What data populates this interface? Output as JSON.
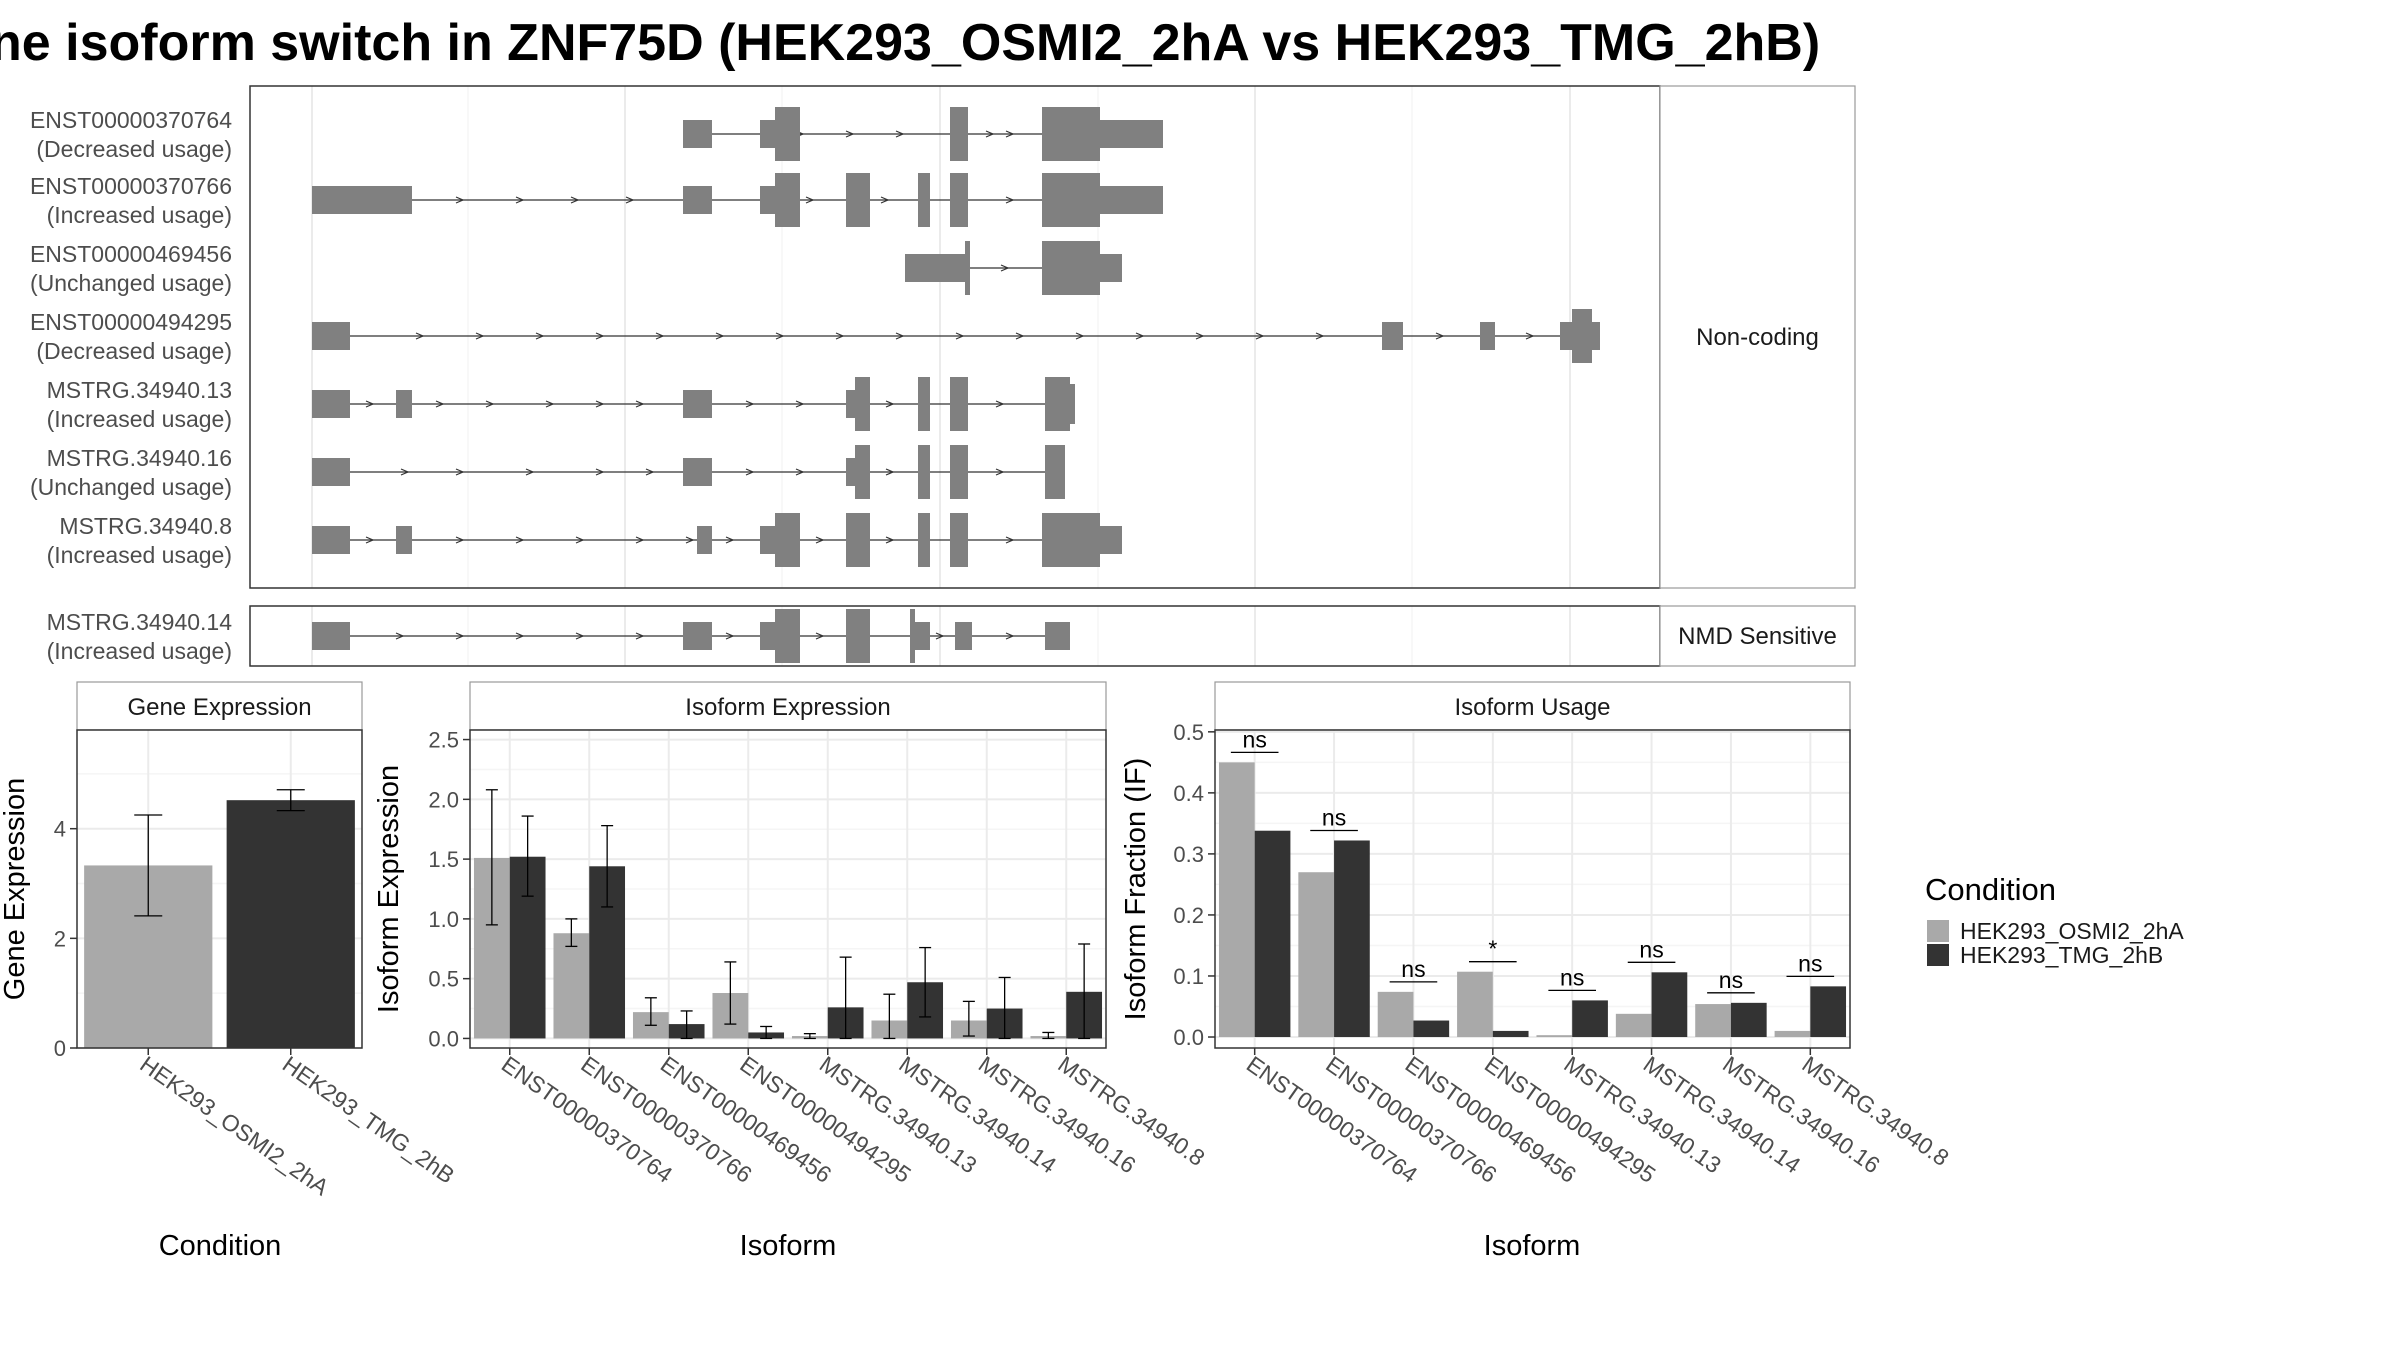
{
  "title": "ne isoform switch in ZNF75D (HEK293_OSMI2_2hA vs HEK293_TMG_2hB)",
  "colors": {
    "cond_a": "#a9a9a9",
    "cond_b": "#333333",
    "exon": "#808080",
    "grid": "#ebebeb",
    "panel_border": "#333333",
    "strip_fill": "#ffffff"
  },
  "structure": {
    "groups": [
      {
        "label": "Non-coding",
        "isoforms": [
          {
            "id": "ENST00000370764",
            "usage": "(Decreased usage)"
          },
          {
            "id": "ENST00000370766",
            "usage": "(Increased usage)"
          },
          {
            "id": "ENST00000469456",
            "usage": "(Unchanged usage)"
          },
          {
            "id": "ENST00000494295",
            "usage": "(Decreased usage)"
          },
          {
            "id": "MSTRG.34940.13",
            "usage": "(Increased usage)"
          },
          {
            "id": "MSTRG.34940.16",
            "usage": "(Unchanged usage)"
          },
          {
            "id": "MSTRG.34940.8",
            "usage": "(Increased usage)"
          }
        ]
      },
      {
        "label": "NMD Sensitive",
        "isoforms": [
          {
            "id": "MSTRG.34940.14",
            "usage": "(Increased usage)"
          }
        ]
      }
    ]
  },
  "legend": {
    "title": "Condition",
    "items": [
      "HEK293_OSMI2_2hA",
      "HEK293_TMG_2hB"
    ]
  },
  "chart_data": [
    {
      "type": "bar",
      "strip": "Gene Expression",
      "xlabel": "Condition",
      "ylabel": "Gene Expression",
      "ylim": [
        0,
        5.8
      ],
      "yticks": [
        0,
        2,
        4
      ],
      "categories": [
        "HEK293_OSMI2_2hA",
        "HEK293_TMG_2hB"
      ],
      "series": [
        {
          "values": [
            3.33,
            4.52
          ],
          "err_low": [
            2.41,
            4.33
          ],
          "err_high": [
            4.25,
            4.71
          ]
        }
      ]
    },
    {
      "type": "bar",
      "strip": "Isoform Expression",
      "xlabel": "Isoform",
      "ylabel": "Isoform Expression",
      "ylim": [
        -0.08,
        2.58
      ],
      "yticks": [
        0.0,
        0.5,
        1.0,
        1.5,
        2.0,
        2.5
      ],
      "categories": [
        "ENST00000370764",
        "ENST00000370766",
        "ENST00000469456",
        "ENST00000494295",
        "MSTRG.34940.13",
        "MSTRG.34940.14",
        "MSTRG.34940.16",
        "MSTRG.34940.8"
      ],
      "series": [
        {
          "name": "HEK293_OSMI2_2hA",
          "values": [
            1.51,
            0.88,
            0.22,
            0.38,
            0.02,
            0.15,
            0.15,
            0.02
          ],
          "err_low": [
            0.95,
            0.77,
            0.11,
            0.12,
            0.0,
            0.0,
            0.02,
            0.0
          ],
          "err_high": [
            2.08,
            1.0,
            0.34,
            0.64,
            0.04,
            0.37,
            0.31,
            0.05
          ]
        },
        {
          "name": "HEK293_TMG_2hB",
          "values": [
            1.52,
            1.44,
            0.12,
            0.05,
            0.26,
            0.47,
            0.25,
            0.39
          ],
          "err_low": [
            1.19,
            1.1,
            0.0,
            0.0,
            0.0,
            0.18,
            0.0,
            0.0
          ],
          "err_high": [
            1.86,
            1.78,
            0.23,
            0.1,
            0.68,
            0.76,
            0.51,
            0.79
          ]
        }
      ]
    },
    {
      "type": "bar",
      "strip": "Isoform Usage",
      "xlabel": "Isoform",
      "ylabel": "Isoform Fraction (IF)",
      "ylim": [
        -0.018,
        0.503
      ],
      "yticks": [
        0.0,
        0.1,
        0.2,
        0.3,
        0.4,
        0.5
      ],
      "categories": [
        "ENST00000370764",
        "ENST00000370766",
        "ENST00000469456",
        "ENST00000494295",
        "MSTRG.34940.13",
        "MSTRG.34940.14",
        "MSTRG.34940.16",
        "MSTRG.34940.8"
      ],
      "series": [
        {
          "name": "HEK293_OSMI2_2hA",
          "values": [
            0.45,
            0.27,
            0.074,
            0.107,
            0.003,
            0.038,
            0.054,
            0.01
          ]
        },
        {
          "name": "HEK293_TMG_2hB",
          "values": [
            0.338,
            0.322,
            0.027,
            0.01,
            0.06,
            0.106,
            0.056,
            0.083
          ]
        }
      ],
      "annotations": [
        "ns",
        "ns",
        "ns",
        "*",
        "ns",
        "ns",
        "ns",
        "ns"
      ]
    }
  ]
}
